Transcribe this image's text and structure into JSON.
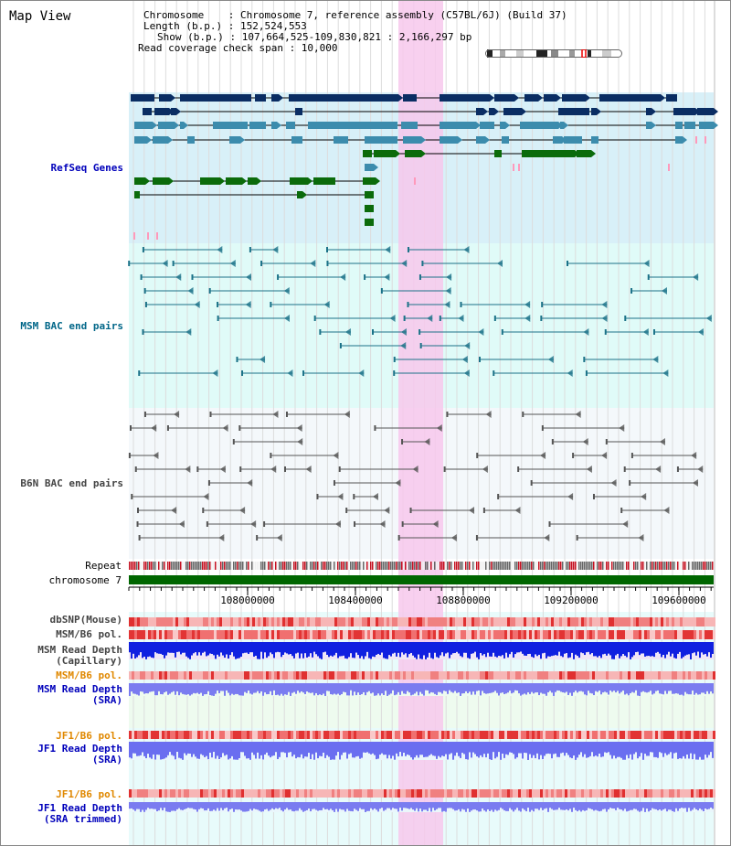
{
  "header": {
    "title": "Map View",
    "chromosome_line": "Chromosome    : Chromosome 7, reference assembly (C57BL/6J) (Build 37)",
    "length_line": "Length (b.p.) : 152,524,553",
    "show_line": "Show (b.p.) : 107,664,525-109,830,821 : 2,166,297 bp",
    "coverage_line": "Read coverage check span : 10,000"
  },
  "tracks": {
    "refseq_label": "RefSeq Genes",
    "msm_bac_label": "MSM BAC end pairs",
    "b6n_bac_label": "B6N BAC end pairs",
    "repeat_label": "Repeat",
    "chromosome_label": "chromosome 7",
    "dbsnp_label": "dbSNP(Mouse)",
    "msm_b6_pol_label": "MSM/B6 pol.",
    "msm_depth_cap_label_1": "MSM Read Depth",
    "msm_depth_cap_label_2": "(Capillary)",
    "msm_b6_pol2_label": "MSM/B6 pol.",
    "msm_depth_sra_label_1": "MSM Read Depth",
    "msm_depth_sra_label_2": "(SRA)",
    "jf1_pol_label": "JF1/B6 pol.",
    "jf1_depth_label_1": "JF1 Read Depth",
    "jf1_depth_label_2": "(SRA)",
    "jf1_pol2_label": "JF1/B6 pol.",
    "jf1_trim_label_1": "JF1 Read Depth",
    "jf1_trim_label_2": "(SRA trimmed)"
  },
  "axis": {
    "ticks": [
      "108000000",
      "108400000",
      "108800000",
      "109200000",
      "109600000"
    ]
  },
  "colors": {
    "refseq_bg": "#d8f0f8",
    "bac_bg": "#e0fbf8",
    "highlight": "#f7c8ec",
    "gene_dark": "#0a2d63",
    "gene_mid": "#3c8cad",
    "gene_green": "#0b6b0b",
    "chrom_bar": "#006600"
  }
}
